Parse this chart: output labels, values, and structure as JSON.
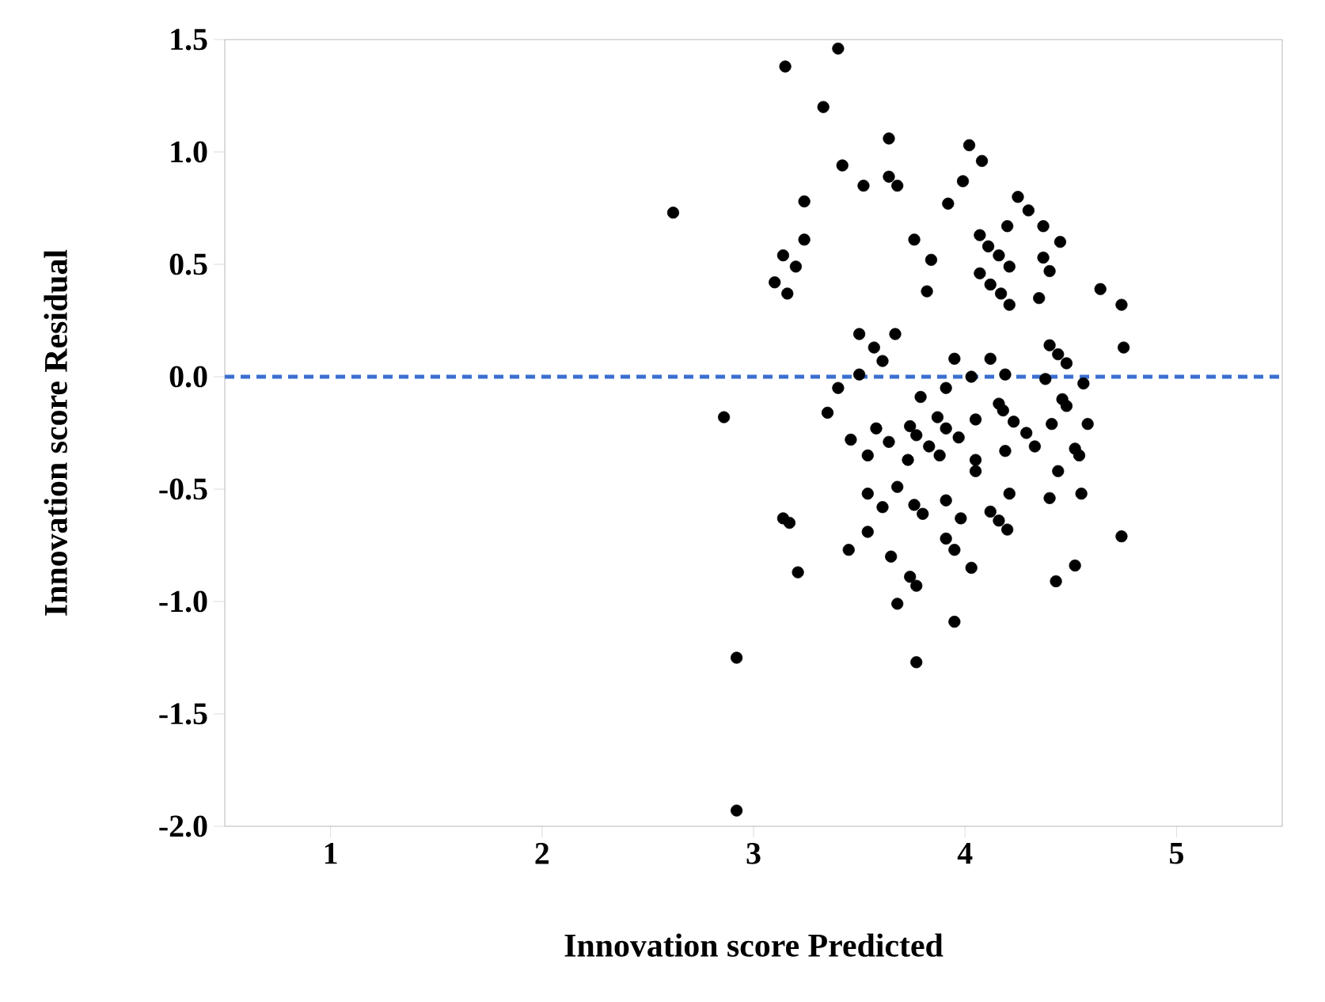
{
  "chart_data": {
    "type": "scatter",
    "xlabel": "Innovation score Predicted",
    "ylabel": "Innovation score Residual",
    "xlim": [
      0.5,
      5.5
    ],
    "ylim": [
      -2.0,
      1.5
    ],
    "xticks": [
      1,
      2,
      3,
      4,
      5
    ],
    "yticks": [
      {
        "value": -2,
        "label": "-2.0"
      },
      {
        "value": -1.5,
        "label": "-1.5"
      },
      {
        "value": -1,
        "label": "-1.0"
      },
      {
        "value": -0.5,
        "label": "-0.5"
      },
      {
        "value": 0,
        "label": "0.0"
      },
      {
        "value": 0.5,
        "label": "0.5"
      },
      {
        "value": 1,
        "label": "1.0"
      },
      {
        "value": 1.5,
        "label": "1.5"
      }
    ],
    "marker": "circle",
    "grid": false,
    "ref_lines": [
      {
        "axis": "y",
        "value": 0,
        "color": "#3a6fd0",
        "line_style": "dashed"
      }
    ],
    "series": [
      {
        "color": "#000000",
        "x": [
          3.4,
          3.15,
          3.33,
          3.64,
          3.42,
          3.52,
          3.64,
          3.68,
          3.92,
          2.62,
          3.24,
          3.24,
          3.14,
          3.2,
          3.1,
          3.16,
          3.76,
          3.84,
          3.82,
          3.5,
          3.67,
          3.57,
          3.61,
          3.5,
          3.4,
          3.95,
          3.91,
          2.86,
          3.35,
          3.79,
          4.02,
          4.08,
          3.99,
          4.25,
          4.3,
          4.2,
          4.37,
          4.45,
          4.07,
          4.11,
          4.16,
          4.21,
          4.07,
          4.12,
          4.17,
          4.21,
          4.37,
          4.4,
          4.35,
          4.64,
          4.74,
          4.75,
          4.4,
          4.44,
          4.48,
          4.56,
          4.38,
          4.03,
          4.12,
          4.19,
          3.46,
          3.54,
          3.58,
          3.64,
          3.74,
          3.77,
          3.73,
          3.87,
          3.91,
          3.83,
          3.88,
          3.54,
          3.61,
          3.68,
          3.76,
          3.8,
          3.91,
          3.91,
          3.95,
          3.14,
          3.17,
          3.54,
          3.45,
          3.65,
          3.21,
          3.74,
          3.77,
          3.68,
          3.95,
          2.92,
          3.77,
          2.92,
          3.97,
          4.05,
          4.16,
          4.18,
          4.23,
          4.29,
          4.33,
          4.41,
          4.58,
          4.46,
          4.48,
          4.52,
          4.54,
          4.44,
          4.19,
          4.05,
          4.05,
          4.21,
          4.4,
          4.55,
          3.98,
          4.12,
          4.16,
          4.2,
          4.03,
          4.74,
          4.52,
          4.43
        ],
        "values": [
          1.46,
          1.38,
          1.2,
          1.06,
          0.94,
          0.85,
          0.89,
          0.85,
          0.77,
          0.73,
          0.78,
          0.61,
          0.54,
          0.49,
          0.42,
          0.37,
          0.61,
          0.52,
          0.38,
          0.19,
          0.19,
          0.13,
          0.07,
          0.01,
          -0.05,
          0.08,
          -0.05,
          -0.18,
          -0.16,
          -0.09,
          1.03,
          0.96,
          0.87,
          0.8,
          0.74,
          0.67,
          0.67,
          0.6,
          0.63,
          0.58,
          0.54,
          0.49,
          0.46,
          0.41,
          0.37,
          0.32,
          0.53,
          0.47,
          0.35,
          0.39,
          0.32,
          0.13,
          0.14,
          0.1,
          0.06,
          -0.03,
          -0.01,
          0.0,
          0.08,
          0.01,
          -0.28,
          -0.35,
          -0.23,
          -0.29,
          -0.22,
          -0.26,
          -0.37,
          -0.18,
          -0.23,
          -0.31,
          -0.35,
          -0.52,
          -0.58,
          -0.49,
          -0.57,
          -0.61,
          -0.55,
          -0.72,
          -0.77,
          -0.63,
          -0.65,
          -0.69,
          -0.77,
          -0.8,
          -0.87,
          -0.89,
          -0.93,
          -1.01,
          -1.09,
          -1.25,
          -1.27,
          -1.93,
          -0.27,
          -0.19,
          -0.12,
          -0.15,
          -0.2,
          -0.25,
          -0.31,
          -0.21,
          -0.21,
          -0.1,
          -0.13,
          -0.32,
          -0.35,
          -0.42,
          -0.33,
          -0.37,
          -0.42,
          -0.52,
          -0.54,
          -0.52,
          -0.63,
          -0.6,
          -0.64,
          -0.68,
          -0.85,
          -0.71,
          -0.84,
          -0.91
        ]
      }
    ]
  }
}
